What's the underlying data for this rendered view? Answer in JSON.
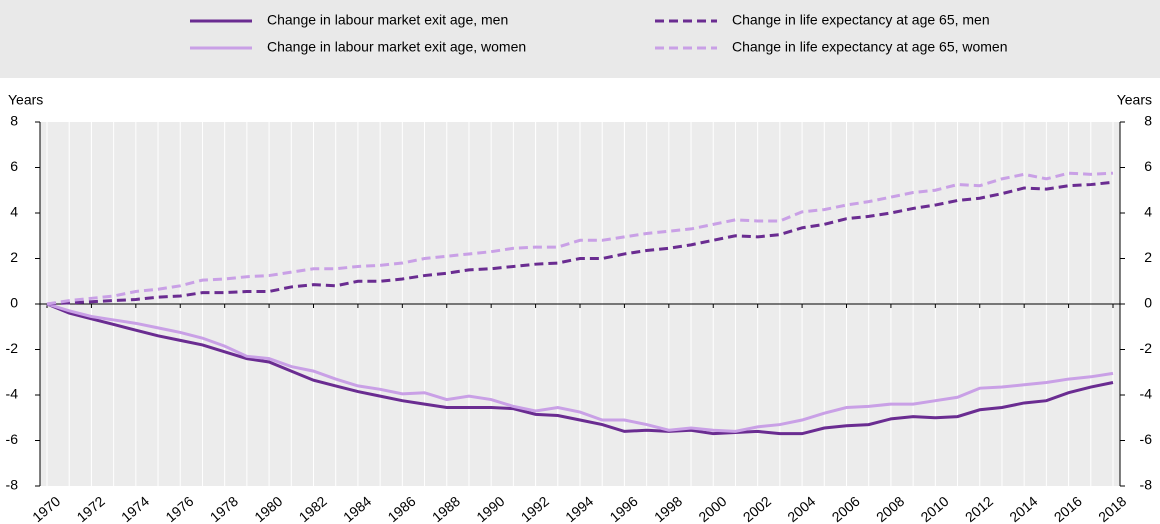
{
  "chart_data": {
    "type": "line",
    "y_label": "Years",
    "y2_label": "Years",
    "x": [
      1970,
      1971,
      1972,
      1973,
      1974,
      1975,
      1976,
      1977,
      1978,
      1979,
      1980,
      1981,
      1982,
      1983,
      1984,
      1985,
      1986,
      1987,
      1988,
      1989,
      1990,
      1991,
      1992,
      1993,
      1994,
      1995,
      1996,
      1997,
      1998,
      1999,
      2000,
      2001,
      2002,
      2003,
      2004,
      2005,
      2006,
      2007,
      2008,
      2009,
      2010,
      2011,
      2012,
      2013,
      2014,
      2015,
      2016,
      2017,
      2018
    ],
    "xlim": [
      1970,
      2018
    ],
    "xticks": [
      1970,
      1972,
      1974,
      1976,
      1978,
      1980,
      1982,
      1984,
      1986,
      1988,
      1990,
      1992,
      1994,
      1996,
      1998,
      2000,
      2002,
      2004,
      2006,
      2008,
      2010,
      2012,
      2014,
      2016,
      2018
    ],
    "ylim": [
      -8,
      8
    ],
    "yticks": [
      -8,
      -6,
      -4,
      -2,
      0,
      2,
      4,
      6,
      8
    ],
    "y2lim": [
      -8,
      8
    ],
    "y2ticks": [
      -8,
      -6,
      -4,
      -2,
      0,
      2,
      4,
      6,
      8
    ],
    "grid": true,
    "series": [
      {
        "name": "Change in labour market exit age, men",
        "color": "#6a2c91",
        "dash": "solid",
        "values": [
          0,
          -0.4,
          -0.65,
          -0.9,
          -1.15,
          -1.4,
          -1.6,
          -1.8,
          -2.1,
          -2.4,
          -2.55,
          -2.95,
          -3.35,
          -3.6,
          -3.85,
          -4.05,
          -4.25,
          -4.4,
          -4.55,
          -4.55,
          -4.55,
          -4.6,
          -4.85,
          -4.9,
          -5.1,
          -5.3,
          -5.6,
          -5.55,
          -5.6,
          -5.55,
          -5.7,
          -5.65,
          -5.6,
          -5.7,
          -5.7,
          -5.45,
          -5.35,
          -5.3,
          -5.05,
          -4.95,
          -5.0,
          -4.95,
          -4.65,
          -4.55,
          -4.35,
          -4.25,
          -3.9,
          -3.65,
          -3.45
        ]
      },
      {
        "name": "Change in labour market exit age, women",
        "color": "#c9a0e6",
        "dash": "solid",
        "values": [
          0,
          -0.3,
          -0.55,
          -0.7,
          -0.85,
          -1.05,
          -1.25,
          -1.5,
          -1.85,
          -2.3,
          -2.4,
          -2.75,
          -2.95,
          -3.3,
          -3.6,
          -3.75,
          -3.95,
          -3.9,
          -4.2,
          -4.05,
          -4.2,
          -4.5,
          -4.7,
          -4.55,
          -4.75,
          -5.1,
          -5.1,
          -5.3,
          -5.55,
          -5.45,
          -5.55,
          -5.6,
          -5.4,
          -5.3,
          -5.1,
          -4.8,
          -4.55,
          -4.5,
          -4.4,
          -4.4,
          -4.25,
          -4.1,
          -3.7,
          -3.65,
          -3.55,
          -3.45,
          -3.3,
          -3.2,
          -3.05
        ]
      },
      {
        "name": "Change in life expectancy at age 65, men",
        "color": "#6a2c91",
        "dash": "dashed",
        "values": [
          0,
          0.05,
          0.1,
          0.15,
          0.2,
          0.3,
          0.35,
          0.5,
          0.5,
          0.55,
          0.55,
          0.75,
          0.85,
          0.8,
          1.0,
          1.0,
          1.1,
          1.25,
          1.35,
          1.5,
          1.55,
          1.65,
          1.75,
          1.8,
          2.0,
          2.0,
          2.2,
          2.35,
          2.45,
          2.6,
          2.8,
          3.0,
          2.95,
          3.05,
          3.35,
          3.5,
          3.75,
          3.85,
          4.0,
          4.2,
          4.35,
          4.55,
          4.65,
          4.85,
          5.1,
          5.05,
          5.2,
          5.25,
          5.35
        ]
      },
      {
        "name": "Change in life expectancy at age 65, women",
        "color": "#c9a0e6",
        "dash": "dashed",
        "values": [
          0,
          0.15,
          0.25,
          0.35,
          0.55,
          0.65,
          0.8,
          1.05,
          1.1,
          1.2,
          1.25,
          1.4,
          1.55,
          1.55,
          1.65,
          1.7,
          1.8,
          2.0,
          2.1,
          2.2,
          2.3,
          2.45,
          2.5,
          2.5,
          2.8,
          2.8,
          2.95,
          3.1,
          3.2,
          3.3,
          3.5,
          3.7,
          3.65,
          3.65,
          4.05,
          4.15,
          4.35,
          4.5,
          4.7,
          4.9,
          5.0,
          5.25,
          5.2,
          5.5,
          5.7,
          5.5,
          5.75,
          5.7,
          5.75
        ]
      }
    ]
  }
}
